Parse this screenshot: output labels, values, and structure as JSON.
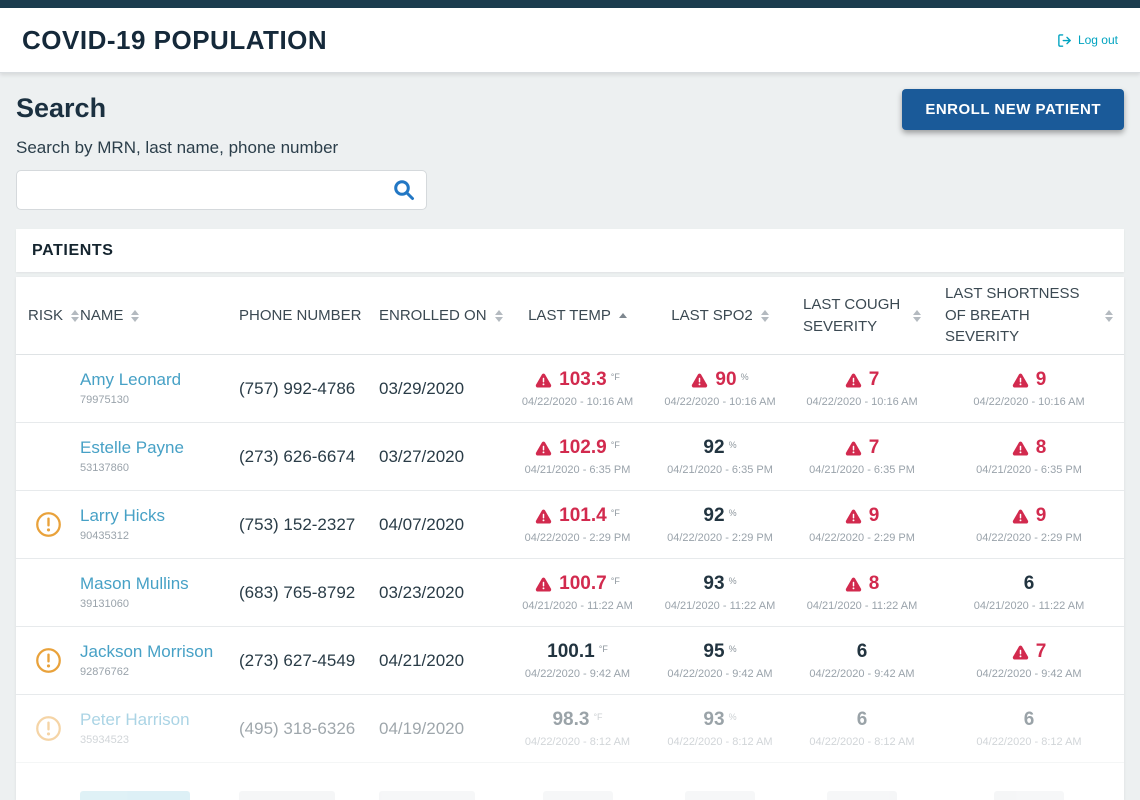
{
  "header": {
    "title": "COVID-19 POPULATION",
    "logout_label": "Log out"
  },
  "search": {
    "heading": "Search",
    "label": "Search by MRN, last name, phone number",
    "input_value": "",
    "enroll_button_label": "ENROLL NEW PATIENT"
  },
  "patients": {
    "heading": "PATIENTS",
    "columns": [
      {
        "id": "risk",
        "label": "RISK",
        "sort": "both",
        "align": "left"
      },
      {
        "id": "name",
        "label": "NAME",
        "sort": "both",
        "align": "left"
      },
      {
        "id": "phone",
        "label": "PHONE NUMBER",
        "sort": "none",
        "align": "left"
      },
      {
        "id": "enrolled",
        "label": "ENROLLED ON",
        "sort": "both",
        "align": "left"
      },
      {
        "id": "temp",
        "label": "LAST TEMP",
        "sort": "asc",
        "align": "center",
        "wrap": "none"
      },
      {
        "id": "spo2",
        "label": "LAST SPO2",
        "sort": "both",
        "align": "center",
        "wrap": "none"
      },
      {
        "id": "cough",
        "label": "LAST COUGH SEVERITY",
        "sort": "both",
        "align": "center",
        "wrap": "narrow"
      },
      {
        "id": "breath",
        "label": "LAST SHORTNESS OF BREATH SEVERITY",
        "sort": "both",
        "align": "center",
        "wrap": "mid"
      }
    ],
    "rows": [
      {
        "risk": false,
        "faded": false,
        "name": "Amy Leonard",
        "mrn": "79975130",
        "phone": "(757) 992-4786",
        "enrolled": "03/29/2020",
        "temp": {
          "value": "103.3",
          "unit": "°F",
          "warning": true,
          "timestamp": "04/22/2020 - 10:16 AM"
        },
        "spo2": {
          "value": "90",
          "unit": "%",
          "warning": true,
          "timestamp": "04/22/2020 - 10:16 AM"
        },
        "cough": {
          "value": "7",
          "unit": "",
          "warning": true,
          "timestamp": "04/22/2020 - 10:16 AM"
        },
        "breath": {
          "value": "9",
          "unit": "",
          "warning": true,
          "timestamp": "04/22/2020 - 10:16 AM"
        }
      },
      {
        "risk": false,
        "faded": false,
        "name": "Estelle Payne",
        "mrn": "53137860",
        "phone": "(273) 626-6674",
        "enrolled": "03/27/2020",
        "temp": {
          "value": "102.9",
          "unit": "°F",
          "warning": true,
          "timestamp": "04/21/2020 - 6:35 PM"
        },
        "spo2": {
          "value": "92",
          "unit": "%",
          "warning": false,
          "timestamp": "04/21/2020 - 6:35 PM"
        },
        "cough": {
          "value": "7",
          "unit": "",
          "warning": true,
          "timestamp": "04/21/2020 - 6:35 PM"
        },
        "breath": {
          "value": "8",
          "unit": "",
          "warning": true,
          "timestamp": "04/21/2020 - 6:35 PM"
        }
      },
      {
        "risk": true,
        "faded": false,
        "name": "Larry Hicks",
        "mrn": "90435312",
        "phone": "(753) 152-2327",
        "enrolled": "04/07/2020",
        "temp": {
          "value": "101.4",
          "unit": "°F",
          "warning": true,
          "timestamp": "04/22/2020 - 2:29 PM"
        },
        "spo2": {
          "value": "92",
          "unit": "%",
          "warning": false,
          "timestamp": "04/22/2020 - 2:29 PM"
        },
        "cough": {
          "value": "9",
          "unit": "",
          "warning": true,
          "timestamp": "04/22/2020 - 2:29 PM"
        },
        "breath": {
          "value": "9",
          "unit": "",
          "warning": true,
          "timestamp": "04/22/2020 - 2:29 PM"
        }
      },
      {
        "risk": false,
        "faded": false,
        "name": "Mason Mullins",
        "mrn": "39131060",
        "phone": "(683) 765-8792",
        "enrolled": "03/23/2020",
        "temp": {
          "value": "100.7",
          "unit": "°F",
          "warning": true,
          "timestamp": "04/21/2020 - 11:22 AM"
        },
        "spo2": {
          "value": "93",
          "unit": "%",
          "warning": false,
          "timestamp": "04/21/2020 - 11:22 AM"
        },
        "cough": {
          "value": "8",
          "unit": "",
          "warning": true,
          "timestamp": "04/21/2020 - 11:22 AM"
        },
        "breath": {
          "value": "6",
          "unit": "",
          "warning": false,
          "timestamp": "04/21/2020 - 11:22 AM"
        }
      },
      {
        "risk": true,
        "faded": false,
        "name": "Jackson Morrison",
        "mrn": "92876762",
        "phone": "(273) 627-4549",
        "enrolled": "04/21/2020",
        "temp": {
          "value": "100.1",
          "unit": "°F",
          "warning": false,
          "timestamp": "04/22/2020 - 9:42 AM"
        },
        "spo2": {
          "value": "95",
          "unit": "%",
          "warning": false,
          "timestamp": "04/22/2020 - 9:42 AM"
        },
        "cough": {
          "value": "6",
          "unit": "",
          "warning": false,
          "timestamp": "04/22/2020 - 9:42 AM"
        },
        "breath": {
          "value": "7",
          "unit": "",
          "warning": true,
          "timestamp": "04/22/2020 - 9:42 AM"
        }
      },
      {
        "risk": true,
        "faded": true,
        "name": "Peter Harrison",
        "mrn": "35934523",
        "phone": "(495) 318-6326",
        "enrolled": "04/19/2020",
        "temp": {
          "value": "98.3",
          "unit": "°F",
          "warning": false,
          "timestamp": "04/22/2020 - 8:12 AM"
        },
        "spo2": {
          "value": "93",
          "unit": "%",
          "warning": false,
          "timestamp": "04/22/2020 - 8:12 AM"
        },
        "cough": {
          "value": "6",
          "unit": "",
          "warning": false,
          "timestamp": "04/22/2020 - 8:12 AM"
        },
        "breath": {
          "value": "6",
          "unit": "",
          "warning": false,
          "timestamp": "04/22/2020 - 8:12 AM"
        }
      }
    ],
    "partial_row_cut_off": true
  },
  "colors": {
    "accent_teal": "#00a3c0",
    "name_link": "#47a1c6",
    "button_blue": "#1a5a99",
    "search_icon_blue": "#2277c4",
    "warning_red": "#d22a4e",
    "risk_orange": "#e9a23b",
    "topstrip": "#1b3c4e",
    "page_bg": "#edf0f1"
  }
}
